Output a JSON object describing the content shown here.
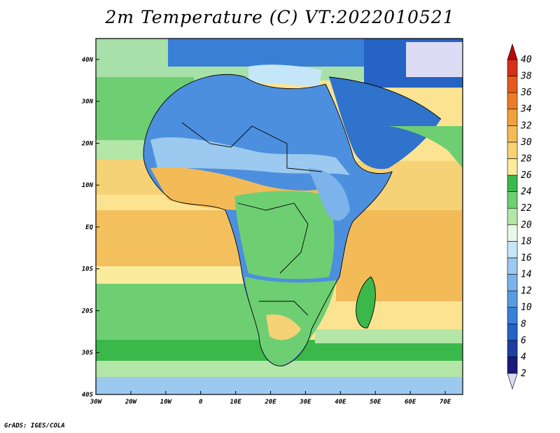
{
  "title": "2m Temperature (C) VT:2022010521",
  "credit": "GrADS: IGES/COLA",
  "map": {
    "variable": "2m Temperature",
    "units": "C",
    "valid_time": "2022010521",
    "lon_range": [
      -30,
      75
    ],
    "lat_range": [
      -40,
      45
    ],
    "lon_ticks": [
      "30W",
      "20W",
      "10W",
      "0",
      "10E",
      "20E",
      "30E",
      "40E",
      "50E",
      "60E",
      "70E"
    ],
    "lat_ticks": [
      "40N",
      "30N",
      "20N",
      "10N",
      "EQ",
      "10S",
      "20S",
      "30S",
      "40S"
    ]
  },
  "colorbar": {
    "labels": [
      "2",
      "4",
      "6",
      "8",
      "10",
      "12",
      "14",
      "16",
      "18",
      "20",
      "22",
      "24",
      "26",
      "28",
      "30",
      "32",
      "34",
      "36",
      "38",
      "40"
    ],
    "colors": [
      "#1a1a7a",
      "#1c3fa0",
      "#2563c4",
      "#3a7fd6",
      "#5a9be0",
      "#7bb3ea",
      "#9cc9f0",
      "#c4e6f8",
      "#e8f8e8",
      "#b4e6a8",
      "#6ecf72",
      "#3bb84a",
      "#fbeb9c",
      "#f6d276",
      "#f3bb58",
      "#efa23c",
      "#eb7d2a",
      "#e65a1e",
      "#d7301a",
      "#b80a0a"
    ]
  }
}
